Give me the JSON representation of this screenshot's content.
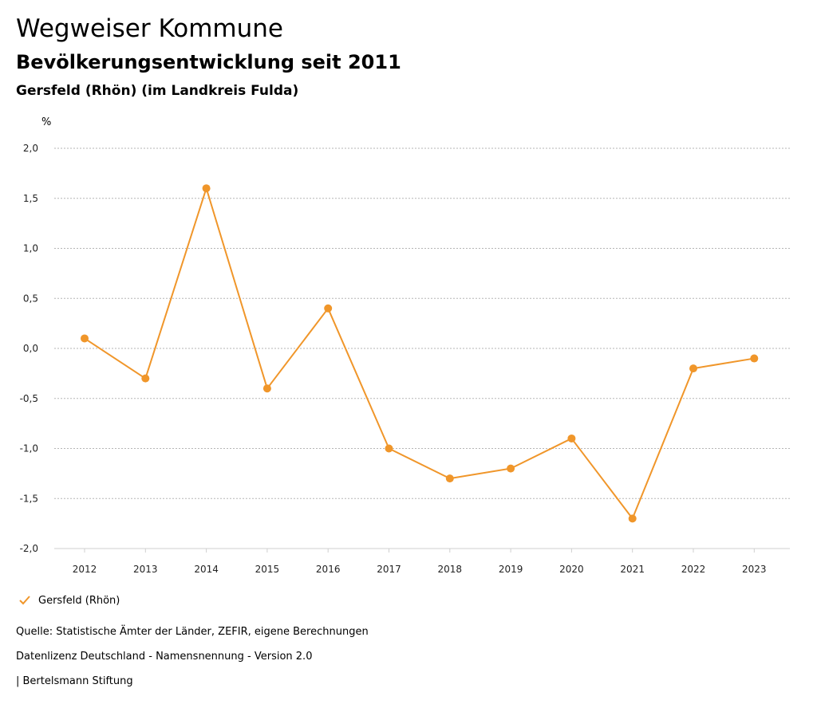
{
  "header": {
    "title": "Wegweiser Kommune",
    "subtitle": "Bevölkerungsentwicklung seit 2011",
    "location": "Gersfeld (Rhön) (im Landkreis Fulda)"
  },
  "chart_data": {
    "type": "line",
    "ylabel": "%",
    "categories": [
      "2012",
      "2013",
      "2014",
      "2015",
      "2016",
      "2017",
      "2018",
      "2019",
      "2020",
      "2021",
      "2022",
      "2023"
    ],
    "series": [
      {
        "name": "Gersfeld (Rhön)",
        "color": "#f0962a",
        "values": [
          0.1,
          -0.3,
          1.6,
          -0.4,
          0.4,
          -1.0,
          -1.3,
          -1.2,
          -0.9,
          -1.7,
          -0.2,
          -0.1
        ]
      }
    ],
    "ylim": [
      -2.0,
      2.0
    ],
    "yticks": [
      2.0,
      1.5,
      1.0,
      0.5,
      0.0,
      -0.5,
      -1.0,
      -1.5,
      -2.0
    ],
    "ytick_labels": [
      "2,0",
      "1,5",
      "1,0",
      "0,5",
      "0,0",
      "-0,5",
      "-1,0",
      "-1,5",
      "-2,0"
    ],
    "grid": true,
    "legend_position": "bottom-left"
  },
  "legend": {
    "label": "Gersfeld (Rhön)"
  },
  "footer": {
    "source": "Quelle: Statistische Ämter der Länder, ZEFIR, eigene Berechnungen",
    "license": "Datenlizenz Deutschland - Namensnennung - Version 2.0",
    "publisher": "| Bertelsmann Stiftung"
  }
}
